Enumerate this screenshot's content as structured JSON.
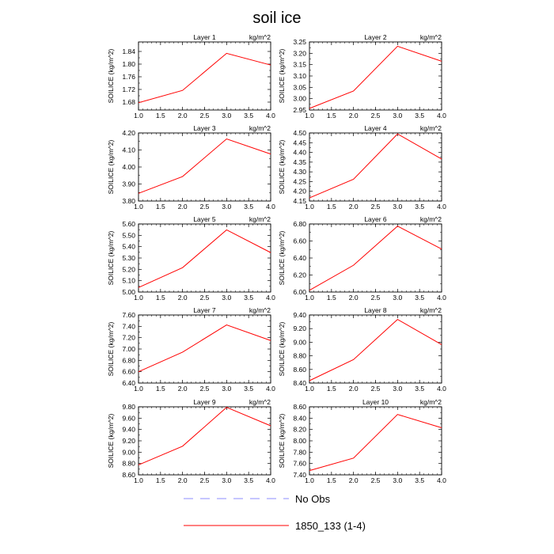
{
  "figure": {
    "title": "soil ice",
    "legend": [
      {
        "label": "No Obs",
        "color": "#8c8cff",
        "dash": true
      },
      {
        "label": "1850_133 (1-4)",
        "color": "#ff0000",
        "dash": false
      }
    ]
  },
  "chart_data": [
    {
      "type": "line",
      "title": "Layer 1",
      "unit": "kg/m^2",
      "ylabel": "SOILICE  (kg/m^2)",
      "x": [
        1.0,
        2.0,
        3.0,
        4.0
      ],
      "xticks": [
        "1.0",
        "1.5",
        "2.0",
        "2.5",
        "3.0",
        "3.5",
        "4.0"
      ],
      "xlim": [
        1.0,
        4.0
      ],
      "ylim": [
        1.655,
        1.87
      ],
      "yticks": [
        "1.68",
        "1.72",
        "1.76",
        "1.80",
        "1.84"
      ],
      "series": [
        {
          "name": "1850_133 (1-4)",
          "color": "#ff0000",
          "values": [
            1.678,
            1.717,
            1.834,
            1.797
          ]
        }
      ]
    },
    {
      "type": "line",
      "title": "Layer 2",
      "unit": "kg/m^2",
      "ylabel": "SOILICE  (kg/m^2)",
      "x": [
        1.0,
        2.0,
        3.0,
        4.0
      ],
      "xticks": [
        "1.0",
        "1.5",
        "2.0",
        "2.5",
        "3.0",
        "3.5",
        "4.0"
      ],
      "xlim": [
        1.0,
        4.0
      ],
      "ylim": [
        2.95,
        3.25
      ],
      "yticks": [
        "2.95",
        "3.00",
        "3.05",
        "3.10",
        "3.15",
        "3.20",
        "3.25"
      ],
      "series": [
        {
          "name": "1850_133 (1-4)",
          "color": "#ff0000",
          "values": [
            2.957,
            3.034,
            3.231,
            3.165
          ]
        }
      ]
    },
    {
      "type": "line",
      "title": "Layer 3",
      "unit": "kg/m^2",
      "ylabel": "SOILICE  (kg/m^2)",
      "x": [
        1.0,
        2.0,
        3.0,
        4.0
      ],
      "xticks": [
        "1.0",
        "1.5",
        "2.0",
        "2.5",
        "3.0",
        "3.5",
        "4.0"
      ],
      "xlim": [
        1.0,
        4.0
      ],
      "ylim": [
        3.8,
        4.2
      ],
      "yticks": [
        "3.80",
        "3.90",
        "4.00",
        "4.10",
        "4.20"
      ],
      "series": [
        {
          "name": "1850_133 (1-4)",
          "color": "#ff0000",
          "values": [
            3.845,
            3.944,
            4.165,
            4.076
          ]
        }
      ]
    },
    {
      "type": "line",
      "title": "Layer 4",
      "unit": "kg/m^2",
      "ylabel": "SOILICE  (kg/m^2)",
      "x": [
        1.0,
        2.0,
        3.0,
        4.0
      ],
      "xticks": [
        "1.0",
        "1.5",
        "2.0",
        "2.5",
        "3.0",
        "3.5",
        "4.0"
      ],
      "xlim": [
        1.0,
        4.0
      ],
      "ylim": [
        4.15,
        4.5
      ],
      "yticks": [
        "4.15",
        "4.20",
        "4.25",
        "4.30",
        "4.35",
        "4.40",
        "4.45",
        "4.50"
      ],
      "series": [
        {
          "name": "1850_133 (1-4)",
          "color": "#ff0000",
          "values": [
            4.166,
            4.262,
            4.495,
            4.366
          ]
        }
      ]
    },
    {
      "type": "line",
      "title": "Layer 5",
      "unit": "kg/m^2",
      "ylabel": "SOILICE  (kg/m^2)",
      "x": [
        1.0,
        2.0,
        3.0,
        4.0
      ],
      "xticks": [
        "1.0",
        "1.5",
        "2.0",
        "2.5",
        "3.0",
        "3.5",
        "4.0"
      ],
      "xlim": [
        1.0,
        4.0
      ],
      "ylim": [
        5.0,
        5.6
      ],
      "yticks": [
        "5.00",
        "5.10",
        "5.20",
        "5.30",
        "5.40",
        "5.50",
        "5.60"
      ],
      "series": [
        {
          "name": "1850_133 (1-4)",
          "color": "#ff0000",
          "values": [
            5.04,
            5.215,
            5.548,
            5.348
          ]
        }
      ]
    },
    {
      "type": "line",
      "title": "Layer 6",
      "unit": "kg/m^2",
      "ylabel": "SOILICE  (kg/m^2)",
      "x": [
        1.0,
        2.0,
        3.0,
        4.0
      ],
      "xticks": [
        "1.0",
        "1.5",
        "2.0",
        "2.5",
        "3.0",
        "3.5",
        "4.0"
      ],
      "xlim": [
        1.0,
        4.0
      ],
      "ylim": [
        6.0,
        6.8
      ],
      "yticks": [
        "6.00",
        "6.20",
        "6.40",
        "6.60",
        "6.80"
      ],
      "series": [
        {
          "name": "1850_133 (1-4)",
          "color": "#ff0000",
          "values": [
            6.02,
            6.315,
            6.775,
            6.505
          ]
        }
      ]
    },
    {
      "type": "line",
      "title": "Layer 7",
      "unit": "kg/m^2",
      "ylabel": "SOILICE  (kg/m^2)",
      "x": [
        1.0,
        2.0,
        3.0,
        4.0
      ],
      "xticks": [
        "1.0",
        "1.5",
        "2.0",
        "2.5",
        "3.0",
        "3.5",
        "4.0"
      ],
      "xlim": [
        1.0,
        4.0
      ],
      "ylim": [
        6.4,
        7.6
      ],
      "yticks": [
        "6.40",
        "6.60",
        "6.80",
        "7.00",
        "7.20",
        "7.40",
        "7.60"
      ],
      "series": [
        {
          "name": "1850_133 (1-4)",
          "color": "#ff0000",
          "values": [
            6.6,
            6.945,
            7.425,
            7.15
          ]
        }
      ]
    },
    {
      "type": "line",
      "title": "Layer 8",
      "unit": "kg/m^2",
      "ylabel": "SOILICE  (kg/m^2)",
      "x": [
        1.0,
        2.0,
        3.0,
        4.0
      ],
      "xticks": [
        "1.0",
        "1.5",
        "2.0",
        "2.5",
        "3.0",
        "3.5",
        "4.0"
      ],
      "xlim": [
        1.0,
        4.0
      ],
      "ylim": [
        8.4,
        9.4
      ],
      "yticks": [
        "8.40",
        "8.60",
        "8.80",
        "9.00",
        "9.20",
        "9.40"
      ],
      "series": [
        {
          "name": "1850_133 (1-4)",
          "color": "#ff0000",
          "values": [
            8.435,
            8.745,
            9.335,
            8.965
          ]
        }
      ]
    },
    {
      "type": "line",
      "title": "Layer 9",
      "unit": "kg/m^2",
      "ylabel": "SOILICE  (kg/m^2)",
      "x": [
        1.0,
        2.0,
        3.0,
        4.0
      ],
      "xticks": [
        "1.0",
        "1.5",
        "2.0",
        "2.5",
        "3.0",
        "3.5",
        "4.0"
      ],
      "xlim": [
        1.0,
        4.0
      ],
      "ylim": [
        8.6,
        9.8
      ],
      "yticks": [
        "8.60",
        "8.80",
        "9.00",
        "9.20",
        "9.40",
        "9.60",
        "9.80"
      ],
      "series": [
        {
          "name": "1850_133 (1-4)",
          "color": "#ff0000",
          "values": [
            8.775,
            9.105,
            9.79,
            9.465
          ]
        }
      ]
    },
    {
      "type": "line",
      "title": "Layer 10",
      "unit": "kg/m^2",
      "ylabel": "SOILICE  (kg/m^2)",
      "x": [
        1.0,
        2.0,
        3.0,
        4.0
      ],
      "xticks": [
        "1.0",
        "1.5",
        "2.0",
        "2.5",
        "3.0",
        "3.5",
        "4.0"
      ],
      "xlim": [
        1.0,
        4.0
      ],
      "ylim": [
        7.4,
        8.6
      ],
      "yticks": [
        "7.40",
        "7.60",
        "7.80",
        "8.00",
        "8.20",
        "8.40",
        "8.60"
      ],
      "series": [
        {
          "name": "1850_133 (1-4)",
          "color": "#ff0000",
          "values": [
            7.475,
            7.695,
            8.465,
            8.23
          ]
        }
      ]
    }
  ]
}
